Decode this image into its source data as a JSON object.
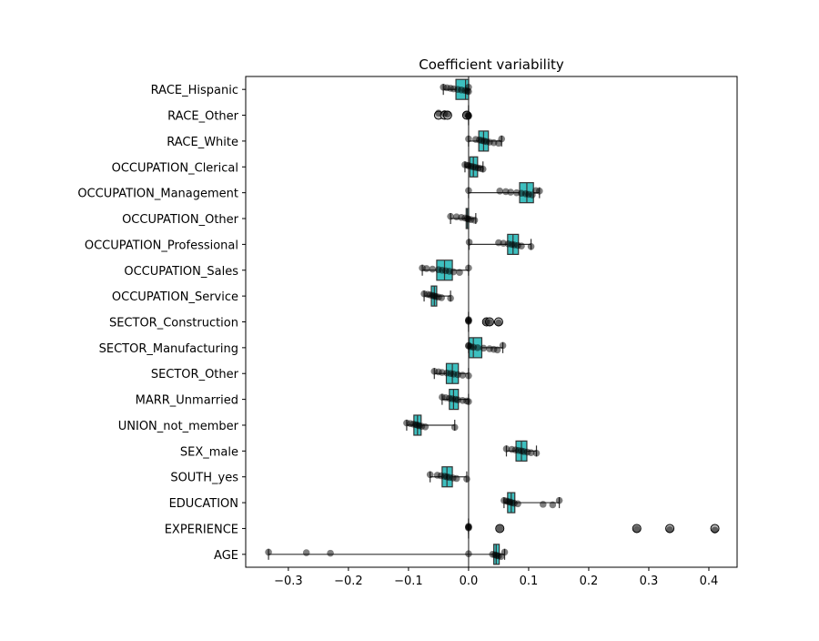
{
  "chart_data": {
    "type": "box",
    "title": "Coefficient variability",
    "xlabel": "",
    "ylabel": "",
    "xlim": [
      -0.371,
      0.447
    ],
    "xticks": [
      -0.3,
      -0.2,
      -0.1,
      0.0,
      0.1,
      0.2,
      0.3,
      0.4
    ],
    "xtick_labels": [
      "−0.3",
      "−0.2",
      "−0.1",
      "0.0",
      "0.1",
      "0.2",
      "0.3",
      "0.4"
    ],
    "reference_line_x": 0,
    "grid": false,
    "colors": {
      "box": "#3dbfbf",
      "edge": "#333333",
      "points": "#000000",
      "refline": "#666666"
    },
    "categories": [
      {
        "name": "RACE_Hispanic",
        "whislo": -0.042,
        "q1": -0.021,
        "med": -0.005,
        "q3": 0.0,
        "whishi": 0.0,
        "fliers": [],
        "points": [
          -0.042,
          -0.036,
          -0.03,
          -0.025,
          -0.018,
          -0.012,
          -0.006,
          -0.002,
          0.0,
          0.0
        ]
      },
      {
        "name": "RACE_Other",
        "whislo": 0.0,
        "q1": 0.0,
        "med": 0.0,
        "q3": 0.0,
        "whishi": 0.0,
        "fliers": [
          -0.05,
          -0.04,
          -0.035,
          -0.003
        ],
        "points": [
          -0.05,
          -0.04,
          -0.035,
          -0.003,
          0.0,
          0.0,
          0.0
        ]
      },
      {
        "name": "RACE_White",
        "whislo": 0.0,
        "q1": 0.017,
        "med": 0.025,
        "q3": 0.033,
        "whishi": 0.055,
        "fliers": [],
        "points": [
          0.0,
          0.012,
          0.018,
          0.022,
          0.026,
          0.03,
          0.035,
          0.042,
          0.05,
          0.055
        ]
      },
      {
        "name": "OCCUPATION_Clerical",
        "whislo": -0.006,
        "q1": 0.002,
        "med": 0.008,
        "q3": 0.015,
        "whishi": 0.024,
        "fliers": [],
        "points": [
          -0.006,
          -0.002,
          0.0,
          0.004,
          0.008,
          0.012,
          0.016,
          0.02,
          0.024
        ]
      },
      {
        "name": "OCCUPATION_Management",
        "whislo": 0.0,
        "q1": 0.085,
        "med": 0.097,
        "q3": 0.108,
        "whishi": 0.118,
        "fliers": [],
        "points": [
          0.0,
          0.052,
          0.062,
          0.07,
          0.08,
          0.088,
          0.095,
          0.1,
          0.106,
          0.112,
          0.118
        ]
      },
      {
        "name": "OCCUPATION_Other",
        "whislo": -0.03,
        "q1": -0.004,
        "med": -0.002,
        "q3": 0.0,
        "whishi": 0.012,
        "fliers": [],
        "points": [
          -0.03,
          -0.02,
          -0.012,
          -0.006,
          -0.002,
          0.0,
          0.004,
          0.01
        ]
      },
      {
        "name": "OCCUPATION_Professional",
        "whislo": 0.001,
        "q1": 0.065,
        "med": 0.074,
        "q3": 0.083,
        "whishi": 0.104,
        "fliers": [],
        "points": [
          0.001,
          0.05,
          0.058,
          0.066,
          0.072,
          0.076,
          0.082,
          0.088,
          0.104
        ]
      },
      {
        "name": "OCCUPATION_Sales",
        "whislo": -0.077,
        "q1": -0.053,
        "med": -0.04,
        "q3": -0.027,
        "whishi": 0.0,
        "fliers": [],
        "points": [
          -0.077,
          -0.07,
          -0.06,
          -0.05,
          -0.044,
          -0.038,
          -0.032,
          -0.025,
          -0.015,
          0.0
        ]
      },
      {
        "name": "OCCUPATION_Service",
        "whislo": -0.074,
        "q1": -0.062,
        "med": -0.057,
        "q3": -0.053,
        "whishi": -0.03,
        "fliers": [],
        "points": [
          -0.074,
          -0.068,
          -0.064,
          -0.06,
          -0.057,
          -0.054,
          -0.05,
          -0.045,
          -0.03
        ]
      },
      {
        "name": "SECTOR_Construction",
        "whislo": 0.0,
        "q1": 0.0,
        "med": 0.0,
        "q3": 0.0,
        "whishi": 0.0,
        "fliers": [
          0.03,
          0.035,
          0.05
        ],
        "points": [
          0.0,
          0.0,
          0.0,
          0.0,
          0.03,
          0.035,
          0.05
        ]
      },
      {
        "name": "SECTOR_Manufacturing",
        "whislo": 0.0,
        "q1": 0.001,
        "med": 0.008,
        "q3": 0.022,
        "whishi": 0.057,
        "fliers": [],
        "points": [
          0.0,
          0.0,
          0.003,
          0.008,
          0.015,
          0.025,
          0.035,
          0.042,
          0.048,
          0.057
        ]
      },
      {
        "name": "SECTOR_Other",
        "whislo": -0.057,
        "q1": -0.037,
        "med": -0.027,
        "q3": -0.017,
        "whishi": 0.0,
        "fliers": [],
        "points": [
          -0.057,
          -0.05,
          -0.044,
          -0.036,
          -0.03,
          -0.025,
          -0.018,
          -0.01,
          0.0
        ]
      },
      {
        "name": "MARR_Unmarried",
        "whislo": -0.044,
        "q1": -0.032,
        "med": -0.025,
        "q3": -0.017,
        "whishi": 0.0,
        "fliers": [],
        "points": [
          -0.044,
          -0.038,
          -0.032,
          -0.027,
          -0.022,
          -0.018,
          -0.01,
          -0.003,
          0.0
        ]
      },
      {
        "name": "UNION_not_member",
        "whislo": -0.103,
        "q1": -0.091,
        "med": -0.085,
        "q3": -0.079,
        "whishi": -0.023,
        "fliers": [],
        "points": [
          -0.103,
          -0.097,
          -0.092,
          -0.088,
          -0.085,
          -0.082,
          -0.078,
          -0.072,
          -0.023
        ]
      },
      {
        "name": "SEX_male",
        "whislo": 0.063,
        "q1": 0.079,
        "med": 0.088,
        "q3": 0.097,
        "whishi": 0.113,
        "fliers": [],
        "points": [
          0.063,
          0.072,
          0.078,
          0.083,
          0.088,
          0.092,
          0.098,
          0.104,
          0.113
        ]
      },
      {
        "name": "SOUTH_yes",
        "whislo": -0.064,
        "q1": -0.044,
        "med": -0.036,
        "q3": -0.027,
        "whishi": -0.003,
        "fliers": [],
        "points": [
          -0.064,
          -0.052,
          -0.046,
          -0.04,
          -0.036,
          -0.032,
          -0.026,
          -0.02,
          -0.003
        ]
      },
      {
        "name": "EDUCATION",
        "whislo": 0.059,
        "q1": 0.065,
        "med": 0.071,
        "q3": 0.077,
        "whishi": 0.151,
        "fliers": [],
        "points": [
          0.059,
          0.063,
          0.066,
          0.069,
          0.072,
          0.076,
          0.082,
          0.124,
          0.14,
          0.151
        ]
      },
      {
        "name": "EXPERIENCE",
        "whislo": 0.0,
        "q1": 0.0,
        "med": 0.0,
        "q3": 0.0,
        "whishi": 0.0,
        "fliers": [
          0.052,
          0.28,
          0.335,
          0.41
        ],
        "points": [
          0.0,
          0.0,
          0.0,
          0.0,
          0.052,
          0.28,
          0.335,
          0.41
        ]
      },
      {
        "name": "AGE",
        "whislo": -0.333,
        "q1": 0.042,
        "med": 0.046,
        "q3": 0.051,
        "whishi": 0.06,
        "fliers": [],
        "points": [
          -0.333,
          -0.27,
          -0.23,
          0.0,
          0.04,
          0.044,
          0.047,
          0.05,
          0.054,
          0.06
        ]
      }
    ]
  }
}
